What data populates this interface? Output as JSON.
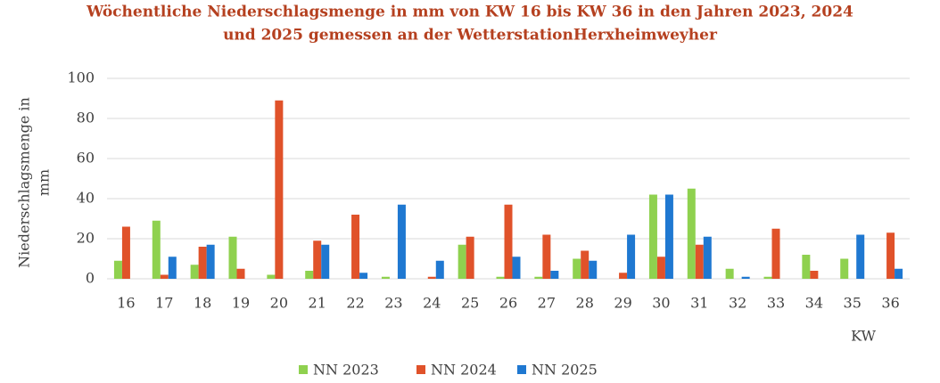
{
  "chart_data": {
    "type": "bar",
    "title": [
      "Wöchentliche Niederschlagsmenge in mm von KW 16 bis KW 36 in den Jahren 2023, 2024",
      "und 2025 gemessen an der WetterstationHerxheimweyher"
    ],
    "y_label": [
      "Niederschlagsmenge in",
      "mm"
    ],
    "x_label": "KW",
    "categories": [
      "16",
      "17",
      "18",
      "19",
      "20",
      "21",
      "22",
      "23",
      "24",
      "25",
      "26",
      "27",
      "28",
      "29",
      "30",
      "31",
      "32",
      "33",
      "34",
      "35",
      "36"
    ],
    "series": [
      {
        "name": "NN 2023",
        "color": "#8fd14f",
        "values": [
          9,
          29,
          7,
          21,
          2,
          4,
          0,
          1,
          0,
          17,
          1,
          1,
          10,
          0,
          42,
          45,
          5,
          1,
          12,
          10,
          0
        ]
      },
      {
        "name": "NN 2024",
        "color": "#e0522a",
        "values": [
          26,
          2,
          16,
          5,
          89,
          19,
          32,
          0,
          1,
          21,
          37,
          22,
          14,
          3,
          11,
          17,
          0,
          25,
          4,
          0,
          23
        ]
      },
      {
        "name": "NN 2025",
        "color": "#1f78d1",
        "values": [
          0,
          11,
          17,
          0,
          0,
          17,
          3,
          37,
          9,
          0,
          11,
          4,
          9,
          22,
          42,
          21,
          1,
          0,
          0,
          22,
          5
        ]
      }
    ],
    "ylim": [
      0,
      100
    ],
    "yticks": [
      0,
      20,
      40,
      60,
      80,
      100
    ],
    "grid": true,
    "legend": "bottom"
  }
}
